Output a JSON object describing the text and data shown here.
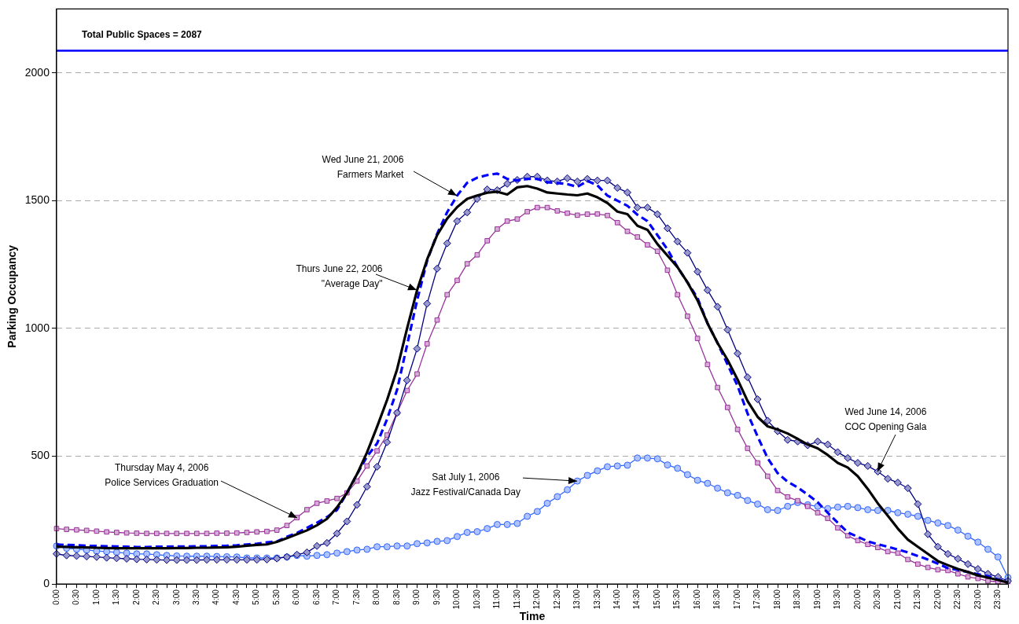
{
  "chart_data": {
    "type": "line",
    "xlabel": "Time",
    "ylabel": "Parking Occupancy",
    "categories": [
      "0:00",
      null,
      "0:30",
      null,
      "1:00",
      null,
      "1:30",
      null,
      "2:00",
      null,
      "2:30",
      null,
      "3:00",
      null,
      "3:30",
      null,
      "4:00",
      null,
      "4:30",
      null,
      "5:00",
      null,
      "5:30",
      null,
      "6:00",
      null,
      "6:30",
      null,
      "7:00",
      null,
      "7:30",
      null,
      "8:00",
      null,
      "8:30",
      null,
      "9:00",
      null,
      "9:30",
      null,
      "10:00",
      null,
      "10:30",
      null,
      "11:00",
      null,
      "11:30",
      null,
      "12:00",
      null,
      "12:30",
      null,
      "13:00",
      null,
      "13:30",
      null,
      "14:00",
      null,
      "14:30",
      null,
      "15:00",
      null,
      "15:30",
      null,
      "16:00",
      null,
      "16:30",
      null,
      "17:00",
      null,
      "17:30",
      null,
      "18:00",
      null,
      "18:30",
      null,
      "19:00",
      null,
      "19:30",
      null,
      "20:00",
      null,
      "20:30",
      null,
      "21:00",
      null,
      "21:30",
      null,
      "22:00",
      null,
      "22:30",
      null,
      "23:00",
      null,
      "23:30",
      null
    ],
    "series": [
      {
        "color": "#000000",
        "marker": "none",
        "line_style": "solid",
        "values": [
          146,
          145,
          144,
          143,
          142,
          141,
          140,
          140,
          140,
          140,
          140,
          140,
          141,
          141,
          142,
          142,
          143,
          144,
          146,
          150,
          153,
          155,
          165,
          180,
          195,
          210,
          230,
          255,
          300,
          357,
          430,
          515,
          615,
          720,
          840,
          1000,
          1150,
          1270,
          1365,
          1430,
          1475,
          1507,
          1520,
          1531,
          1535,
          1524,
          1552,
          1557,
          1547,
          1532,
          1528,
          1524,
          1521,
          1528,
          1513,
          1491,
          1457,
          1447,
          1402,
          1386,
          1330,
          1285,
          1240,
          1180,
          1110,
          1020,
          943,
          877,
          800,
          716,
          654,
          617,
          605,
          589,
          568,
          546,
          531,
          505,
          474,
          456,
          422,
          372,
          316,
          267,
          217,
          174,
          146,
          118,
          90,
          74,
          59,
          47,
          34,
          25,
          16,
          6
        ]
      },
      {
        "color": "#0000ff",
        "marker": "none",
        "line_style": "dashed",
        "values": [
          155,
          153,
          152,
          150,
          149,
          148,
          147,
          146,
          145,
          145,
          146,
          146,
          147,
          147,
          148,
          148,
          149,
          150,
          152,
          155,
          158,
          163,
          167,
          185,
          200,
          220,
          240,
          262,
          290,
          357,
          430,
          499,
          550,
          645,
          760,
          935,
          1110,
          1265,
          1370,
          1455,
          1520,
          1570,
          1590,
          1600,
          1606,
          1585,
          1579,
          1585,
          1585,
          1572,
          1569,
          1565,
          1554,
          1577,
          1560,
          1520,
          1500,
          1480,
          1445,
          1420,
          1365,
          1309,
          1240,
          1180,
          1119,
          1020,
          943,
          859,
          775,
          667,
          577,
          493,
          434,
          400,
          378,
          350,
          320,
          279,
          240,
          202,
          185,
          167,
          156,
          146,
          135,
          124,
          110,
          96,
          80,
          62,
          55,
          47,
          39,
          31,
          18,
          6
        ]
      },
      {
        "color": "#000080",
        "marker": "diamond",
        "line_style": "solid",
        "values": [
          118,
          112,
          110,
          108,
          106,
          103,
          101,
          99,
          97,
          96,
          95,
          94,
          94,
          94,
          94,
          95,
          95,
          95,
          95,
          95,
          95,
          96,
          100,
          106,
          115,
          124,
          149,
          161,
          198,
          245,
          310,
          381,
          459,
          555,
          670,
          797,
          921,
          1097,
          1234,
          1333,
          1420,
          1454,
          1507,
          1544,
          1541,
          1566,
          1581,
          1594,
          1594,
          1579,
          1575,
          1588,
          1575,
          1585,
          1579,
          1579,
          1550,
          1532,
          1473,
          1473,
          1447,
          1392,
          1340,
          1296,
          1222,
          1150,
          1085,
          995,
          902,
          809,
          723,
          639,
          598,
          564,
          558,
          543,
          558,
          546,
          516,
          493,
          474,
          462,
          440,
          412,
          397,
          375,
          313,
          195,
          146,
          118,
          99,
          78,
          59,
          40,
          28,
          12
        ]
      },
      {
        "color": "#993399",
        "marker": "square",
        "line_style": "solid",
        "values": [
          217,
          214,
          212,
          210,
          207,
          204,
          202,
          200,
          199,
          198,
          198,
          198,
          198,
          198,
          198,
          198,
          199,
          199,
          200,
          202,
          204,
          206,
          211,
          229,
          260,
          291,
          316,
          325,
          335,
          357,
          403,
          462,
          521,
          583,
          670,
          757,
          822,
          940,
          1033,
          1132,
          1188,
          1253,
          1288,
          1343,
          1389,
          1420,
          1428,
          1457,
          1473,
          1473,
          1460,
          1451,
          1443,
          1447,
          1448,
          1442,
          1414,
          1380,
          1358,
          1327,
          1302,
          1228,
          1132,
          1048,
          961,
          859,
          769,
          691,
          605,
          531,
          474,
          422,
          366,
          341,
          326,
          304,
          279,
          257,
          220,
          189,
          170,
          155,
          143,
          127,
          121,
          96,
          78,
          65,
          56,
          53,
          40,
          28,
          22,
          12,
          9,
          6
        ]
      },
      {
        "color": "#3366ff",
        "marker": "circle",
        "line_style": "solid",
        "values": [
          149,
          140,
          136,
          133,
          129,
          127,
          124,
          121,
          118,
          118,
          115,
          112,
          110,
          109,
          109,
          109,
          108,
          107,
          106,
          102,
          102,
          102,
          102,
          106,
          112,
          109,
          112,
          115,
          121,
          127,
          133,
          136,
          146,
          146,
          149,
          149,
          158,
          161,
          167,
          170,
          186,
          202,
          205,
          217,
          233,
          233,
          237,
          265,
          284,
          316,
          342,
          369,
          403,
          425,
          443,
          459,
          462,
          465,
          493,
          493,
          490,
          466,
          453,
          428,
          406,
          394,
          375,
          357,
          347,
          327,
          313,
          291,
          288,
          304,
          319,
          310,
          304,
          295,
          301,
          304,
          299,
          291,
          288,
          288,
          279,
          273,
          265,
          249,
          239,
          229,
          211,
          187,
          164,
          136,
          106,
          25
        ]
      }
    ],
    "annotations": [
      {
        "text": "Thurs June 22, 2006\n\"Average Day\"",
        "x": "9:00",
        "y": 1150
      },
      {
        "text": "Wed June 21, 2006\nFarmers Market",
        "x": "10:00",
        "y": 1520
      },
      {
        "text": "Wed June 14, 2006\nCOC Opening Gala",
        "x": "20:30",
        "y": 440
      },
      {
        "text": "Thursday May 4, 2006\nPolice Services Graduation",
        "x": "6:00",
        "y": 260
      },
      {
        "text": "Sat July 1, 2006\nJazz Festival/Canada Day",
        "x": "13:00",
        "y": 403
      }
    ],
    "ylim": [
      0,
      2250
    ],
    "yticks": [
      0,
      500,
      1000,
      1500,
      2000
    ],
    "grid": "y",
    "legend": false,
    "ref_lines": [
      {
        "axis": "y",
        "value": 2087,
        "label": "Total Public Spaces = 2087",
        "color": "#0000ff",
        "line_style": "solid"
      }
    ]
  }
}
